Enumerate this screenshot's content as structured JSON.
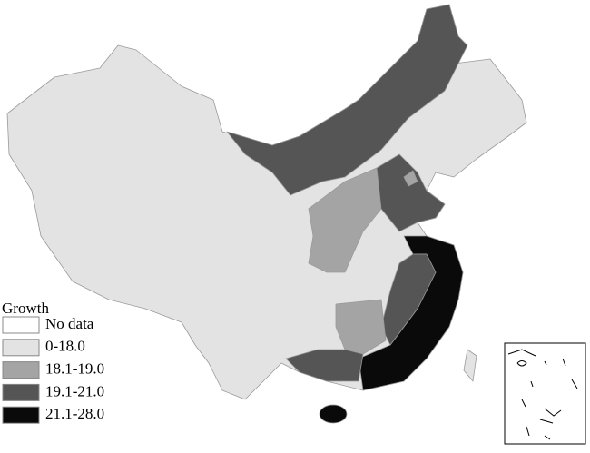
{
  "legend": {
    "title": "Growth",
    "items": [
      {
        "label": "No data",
        "color": "#ffffff"
      },
      {
        "label": "0-18.0",
        "color": "#e3e3e3"
      },
      {
        "label": "18.1-19.0",
        "color": "#a4a4a4"
      },
      {
        "label": "19.1-21.0",
        "color": "#555555"
      },
      {
        "label": "21.1-28.0",
        "color": "#0a0a0a"
      }
    ]
  }
}
